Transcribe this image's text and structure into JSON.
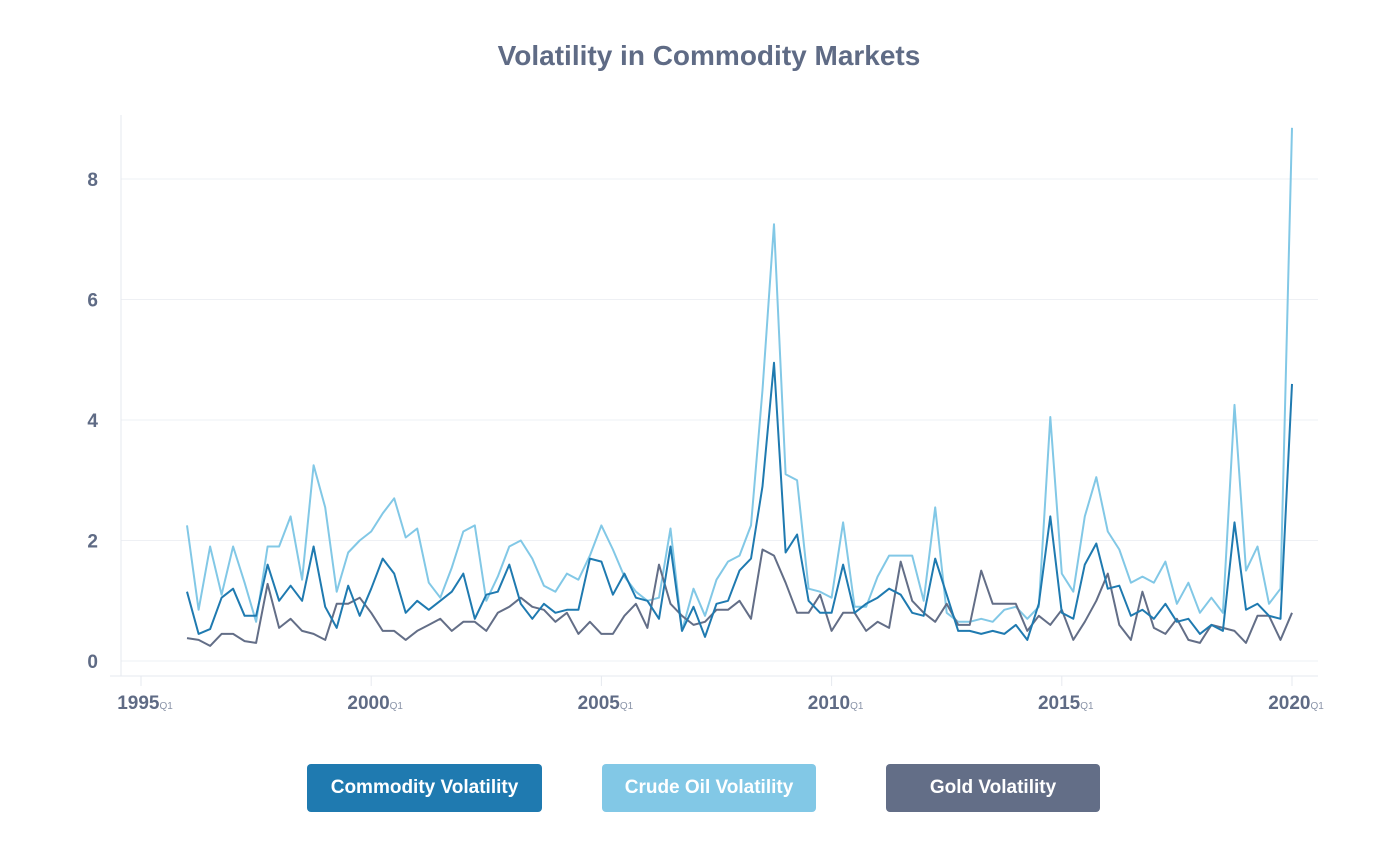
{
  "chart_data": {
    "type": "line",
    "title": "Volatility in Commodity Markets",
    "xlabel": "",
    "ylabel": "",
    "ylim": [
      -0.2,
      9.1
    ],
    "xlim": [
      1994.75,
      2020.75
    ],
    "yticks": [
      "0",
      "2",
      "4",
      "6",
      "8"
    ],
    "xticks": [
      {
        "year": "1995",
        "q": "Q1"
      },
      {
        "year": "2000",
        "q": "Q1"
      },
      {
        "year": "2005",
        "q": "Q1"
      },
      {
        "year": "2010",
        "q": "Q1"
      },
      {
        "year": "2015",
        "q": "Q1"
      },
      {
        "year": "2020",
        "q": "Q1"
      }
    ],
    "x_start": 1996.0,
    "x_step": 0.25,
    "series": [
      {
        "name": "Commodity Volatility",
        "color": "#1f7ab0",
        "values": [
          1.15,
          0.45,
          0.53,
          1.05,
          1.2,
          0.75,
          0.75,
          1.6,
          1.0,
          1.25,
          1.0,
          1.9,
          0.9,
          0.55,
          1.25,
          0.75,
          1.2,
          1.7,
          1.45,
          0.8,
          1.0,
          0.85,
          1.0,
          1.15,
          1.45,
          0.7,
          1.1,
          1.15,
          1.6,
          0.95,
          0.7,
          0.95,
          0.8,
          0.85,
          0.85,
          1.7,
          1.65,
          1.1,
          1.45,
          1.05,
          1.0,
          0.7,
          1.9,
          0.5,
          0.9,
          0.4,
          0.95,
          1.0,
          1.5,
          1.7,
          2.9,
          4.95,
          1.8,
          2.1,
          1.0,
          0.8,
          0.8,
          1.6,
          0.8,
          0.95,
          1.05,
          1.2,
          1.1,
          0.8,
          0.75,
          1.7,
          1.1,
          0.5,
          0.5,
          0.45,
          0.5,
          0.45,
          0.6,
          0.35,
          0.95,
          2.4,
          0.8,
          0.7,
          1.6,
          1.95,
          1.2,
          1.25,
          0.75,
          0.85,
          0.7,
          0.95,
          0.65,
          0.7,
          0.45,
          0.6,
          0.5,
          2.3,
          0.85,
          0.95,
          0.75,
          0.7,
          4.6
        ]
      },
      {
        "name": "Crude Oil Volatility",
        "color": "#82c8e6",
        "values": [
          2.25,
          0.85,
          1.9,
          1.1,
          1.9,
          1.3,
          0.65,
          1.9,
          1.9,
          2.4,
          1.35,
          3.25,
          2.55,
          1.15,
          1.8,
          2.0,
          2.15,
          2.45,
          2.7,
          2.05,
          2.2,
          1.3,
          1.05,
          1.55,
          2.15,
          2.25,
          1.0,
          1.4,
          1.9,
          2.0,
          1.7,
          1.25,
          1.15,
          1.45,
          1.35,
          1.75,
          2.25,
          1.85,
          1.4,
          1.15,
          1.0,
          1.05,
          2.2,
          0.5,
          1.2,
          0.75,
          1.35,
          1.65,
          1.75,
          2.25,
          4.5,
          7.25,
          3.1,
          3.0,
          1.2,
          1.15,
          1.05,
          2.3,
          0.9,
          0.9,
          1.4,
          1.75,
          1.75,
          1.75,
          1.0,
          2.55,
          0.8,
          0.65,
          0.65,
          0.7,
          0.65,
          0.85,
          0.9,
          0.7,
          0.9,
          4.05,
          1.45,
          1.15,
          2.4,
          3.05,
          2.15,
          1.85,
          1.3,
          1.4,
          1.3,
          1.65,
          0.95,
          1.3,
          0.8,
          1.05,
          0.8,
          4.25,
          1.5,
          1.9,
          0.95,
          1.2,
          8.85
        ]
      },
      {
        "name": "Gold Volatility",
        "color": "#636e87",
        "values": [
          0.38,
          0.35,
          0.25,
          0.45,
          0.45,
          0.33,
          0.3,
          1.28,
          0.55,
          0.7,
          0.5,
          0.45,
          0.35,
          0.95,
          0.95,
          1.05,
          0.8,
          0.5,
          0.5,
          0.35,
          0.5,
          0.6,
          0.7,
          0.5,
          0.65,
          0.65,
          0.5,
          0.8,
          0.9,
          1.05,
          0.9,
          0.85,
          0.65,
          0.8,
          0.45,
          0.65,
          0.45,
          0.45,
          0.75,
          0.95,
          0.55,
          1.6,
          0.95,
          0.75,
          0.6,
          0.65,
          0.85,
          0.85,
          1.0,
          0.7,
          1.85,
          1.75,
          1.3,
          0.8,
          0.8,
          1.1,
          0.5,
          0.8,
          0.8,
          0.5,
          0.65,
          0.55,
          1.65,
          1.0,
          0.8,
          0.65,
          0.95,
          0.6,
          0.6,
          1.5,
          0.95,
          0.95,
          0.95,
          0.5,
          0.75,
          0.6,
          0.85,
          0.35,
          0.65,
          1.0,
          1.45,
          0.6,
          0.35,
          1.15,
          0.55,
          0.45,
          0.7,
          0.35,
          0.3,
          0.6,
          0.55,
          0.5,
          0.3,
          0.75,
          0.75,
          0.35,
          0.8
        ]
      }
    ]
  },
  "legend": {
    "commodity_label": "Commodity Volatility",
    "crude_label": "Crude Oil Volatility",
    "gold_label": "Gold Volatility"
  }
}
